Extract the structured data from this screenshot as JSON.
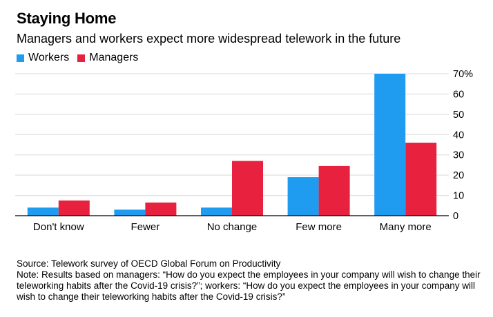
{
  "header": {
    "title": "Staying Home",
    "subtitle": "Managers and workers expect more widespread telework in the future"
  },
  "legend": [
    {
      "label": "Workers",
      "color": "#1f9bf0"
    },
    {
      "label": "Managers",
      "color": "#e8213f"
    }
  ],
  "chart_data": {
    "type": "bar",
    "categories": [
      "Don't know",
      "Fewer",
      "No change",
      "Few more",
      "Many more"
    ],
    "series": [
      {
        "name": "Workers",
        "color": "#1f9bf0",
        "values": [
          4,
          3,
          4,
          19,
          70
        ]
      },
      {
        "name": "Managers",
        "color": "#e8213f",
        "values": [
          7.5,
          6.5,
          27,
          24.5,
          36
        ]
      }
    ],
    "ylim": [
      0,
      70
    ],
    "yticks": [
      0,
      10,
      20,
      30,
      40,
      50,
      60,
      70
    ],
    "ytick_labels": [
      "0",
      "10",
      "20",
      "30",
      "40",
      "50",
      "60",
      "70%"
    ],
    "grid": true,
    "legend_position": "top-left"
  },
  "footer": {
    "source": "Source: Telework survey of OECD Global Forum on Productivity",
    "note": "Note: Results based on managers: “How do you expect the employees in your company will wish to change their teleworking habits after the Covid-19 crisis?”; workers: “How do you expect the employees in your company will wish to change their teleworking habits after the Covid-19 crisis?”"
  }
}
